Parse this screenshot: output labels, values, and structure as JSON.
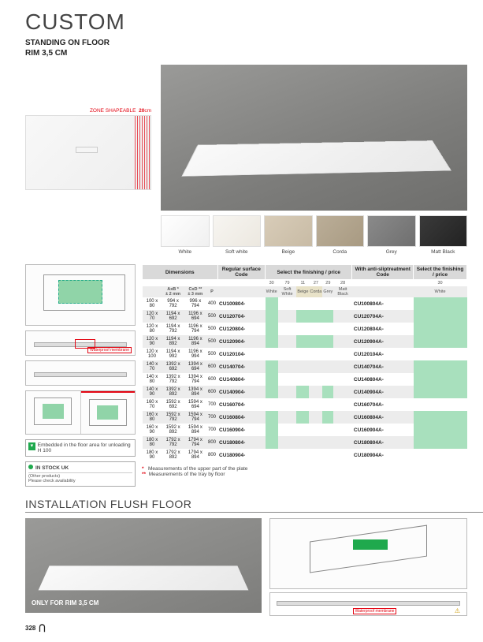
{
  "title": "CUSTOM",
  "subtitle": "STANDING ON FLOOR\nRIM 3,5 CM",
  "zone": {
    "label": "ZONE SHAPEABLE",
    "cm": "20",
    "unit": "cm"
  },
  "swatches": [
    {
      "label": "White",
      "cls": "sw-white"
    },
    {
      "label": "Soft white",
      "cls": "sw-soft"
    },
    {
      "label": "Beige",
      "cls": "sw-beige"
    },
    {
      "label": "Corda",
      "cls": "sw-corda"
    },
    {
      "label": "Grey",
      "cls": "sw-grey"
    },
    {
      "label": "Matt Black",
      "cls": "sw-black"
    }
  ],
  "diag_note": "Embedded in the floor area for unloading H 100",
  "stock": {
    "main": "IN STOCK UK",
    "sub1": "(Other products)",
    "sub2": "Please check availability"
  },
  "headers": {
    "dim": "Dimensions",
    "reg": "Regular surface Code",
    "sel": "Select the finishing / price",
    "anti": "With anti-sliptreatment Code",
    "sel2": "Select the finishing / price"
  },
  "dimhead": {
    "axb": "AxB *",
    "axbtol": "± 2 mm",
    "cxd": "CxD **",
    "cxdtol": "± 3 mm",
    "p": "P"
  },
  "finishcodes": [
    "30",
    "79",
    "11",
    "27",
    "29",
    "28"
  ],
  "finishnames": [
    "White",
    "Soft White",
    "Beige",
    "Corda",
    "Grey",
    "Matt Black"
  ],
  "finishcode2": "30",
  "finishname2": "White",
  "rows": [
    {
      "s": "100 x 80",
      "axb": "994 x 792",
      "cxd": "996 x 794",
      "p": "400",
      "c1": "CU100804-",
      "g": [
        1,
        0,
        0,
        0,
        0,
        0
      ],
      "c2": "CU100804A-",
      "g2": 1
    },
    {
      "s": "120 x 70",
      "axb": "1194 x 692",
      "cxd": "1196 x 694",
      "p": "500",
      "c1": "CU120704-",
      "g": [
        1,
        0,
        1,
        1,
        1,
        0
      ],
      "c2": "CU120704A-",
      "g2": 1
    },
    {
      "s": "120 x 80",
      "axb": "1194 x 792",
      "cxd": "1196 x 794",
      "p": "500",
      "c1": "CU120804-",
      "g": [
        1,
        0,
        0,
        0,
        0,
        0
      ],
      "c2": "CU120804A-",
      "g2": 1
    },
    {
      "s": "120 x 90",
      "axb": "1194 x 892",
      "cxd": "1196 x 894",
      "p": "500",
      "c1": "CU120904-",
      "g": [
        1,
        0,
        1,
        1,
        1,
        0
      ],
      "c2": "CU120904A-",
      "g2": 1
    },
    {
      "s": "120 x 100",
      "axb": "1194 x 992",
      "cxd": "1196 x 994",
      "p": "500",
      "c1": "CU120104-",
      "g": [
        0,
        0,
        0,
        0,
        0,
        0
      ],
      "c2": "CU120104A-",
      "g2": 0
    },
    {
      "s": "140 x 70",
      "axb": "1392 x 692",
      "cxd": "1394 x 694",
      "p": "600",
      "c1": "CU140704-",
      "g": [
        1,
        0,
        0,
        0,
        0,
        0
      ],
      "c2": "CU140704A-",
      "g2": 1
    },
    {
      "s": "140 x 80",
      "axb": "1392 x 792",
      "cxd": "1394 x 794",
      "p": "600",
      "c1": "CU140804-",
      "g": [
        1,
        0,
        0,
        0,
        0,
        0
      ],
      "c2": "CU140804A-",
      "g2": 1
    },
    {
      "s": "140 x 90",
      "axb": "1392 x 892",
      "cxd": "1394 x 894",
      "p": "600",
      "c1": "CU140904-",
      "g": [
        1,
        0,
        1,
        0,
        1,
        0
      ],
      "c2": "CU140904A-",
      "g2": 1
    },
    {
      "s": "160 x 70",
      "axb": "1592 x 692",
      "cxd": "1594 x 694",
      "p": "700",
      "c1": "CU160704-",
      "g": [
        0,
        0,
        0,
        0,
        0,
        0
      ],
      "c2": "CU160704A-",
      "g2": 0
    },
    {
      "s": "160 x 80",
      "axb": "1592 x 792",
      "cxd": "1594 x 794",
      "p": "700",
      "c1": "CU160804-",
      "g": [
        1,
        0,
        1,
        0,
        1,
        0
      ],
      "c2": "CU160804A-",
      "g2": 1
    },
    {
      "s": "160 x 90",
      "axb": "1592 x 892",
      "cxd": "1594 x 894",
      "p": "700",
      "c1": "CU160904-",
      "g": [
        1,
        0,
        0,
        0,
        0,
        0
      ],
      "c2": "CU160904A-",
      "g2": 1
    },
    {
      "s": "180 x 80",
      "axb": "1792 x 792",
      "cxd": "1794 x 794",
      "p": "800",
      "c1": "CU180804-",
      "g": [
        1,
        0,
        0,
        0,
        0,
        0
      ],
      "c2": "CU180804A-",
      "g2": 1
    },
    {
      "s": "180 x 90",
      "axb": "1792 x 892",
      "cxd": "1794 x 894",
      "p": "800",
      "c1": "CU180904-",
      "g": [
        0,
        0,
        0,
        0,
        0,
        0
      ],
      "c2": "CU180904A-",
      "g2": 0
    }
  ],
  "legend": {
    "l1": "Measurements of the upper part of the plate",
    "l2": "Measurements of the tray by floor"
  },
  "install": {
    "title": "INSTALLATION FLUSH FLOOR",
    "caption": "ONLY FOR RIM 3,5 CM",
    "memb": "Waterproof membrane"
  },
  "pagenum": "328"
}
